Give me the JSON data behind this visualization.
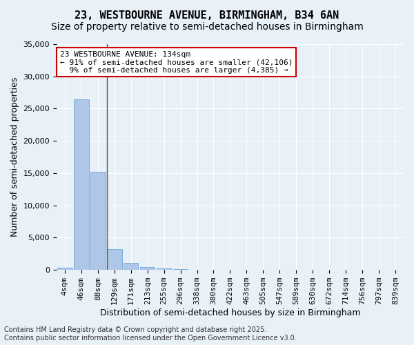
{
  "title_line1": "23, WESTBOURNE AVENUE, BIRMINGHAM, B34 6AN",
  "title_line2": "Size of property relative to semi-detached houses in Birmingham",
  "xlabel": "Distribution of semi-detached houses by size in Birmingham",
  "ylabel": "Number of semi-detached properties",
  "footer_line1": "Contains HM Land Registry data © Crown copyright and database right 2025.",
  "footer_line2": "Contains public sector information licensed under the Open Government Licence v3.0.",
  "annotation_line1": "23 WESTBOURNE AVENUE: 134sqm",
  "annotation_line2": "← 91% of semi-detached houses are smaller (42,106)",
  "annotation_line3": "  9% of semi-detached houses are larger (4,385) →",
  "bins": [
    "4sqm",
    "46sqm",
    "88sqm",
    "129sqm",
    "171sqm",
    "213sqm",
    "255sqm",
    "296sqm",
    "338sqm",
    "380sqm",
    "422sqm",
    "463sqm",
    "505sqm",
    "547sqm",
    "589sqm",
    "630sqm",
    "672sqm",
    "714sqm",
    "756sqm",
    "797sqm",
    "839sqm"
  ],
  "values": [
    350,
    26400,
    15250,
    3200,
    1100,
    420,
    250,
    100,
    0,
    0,
    0,
    0,
    0,
    0,
    0,
    0,
    0,
    0,
    0,
    0,
    0
  ],
  "bar_color": "#aec6e8",
  "bar_edge_color": "#5a9fd4",
  "vline_color": "#555555",
  "annotation_box_color": "#ffffff",
  "annotation_box_edge_color": "#cc0000",
  "ylim": [
    0,
    35000
  ],
  "yticks": [
    0,
    5000,
    10000,
    15000,
    20000,
    25000,
    30000,
    35000
  ],
  "background_color": "#e8f0f8",
  "plot_background": "#e8f0f8",
  "grid_color": "#ffffff",
  "title_fontsize": 11,
  "subtitle_fontsize": 10,
  "axis_label_fontsize": 9,
  "tick_fontsize": 8,
  "annotation_fontsize": 8,
  "footer_fontsize": 7,
  "vline_x": 2.55
}
